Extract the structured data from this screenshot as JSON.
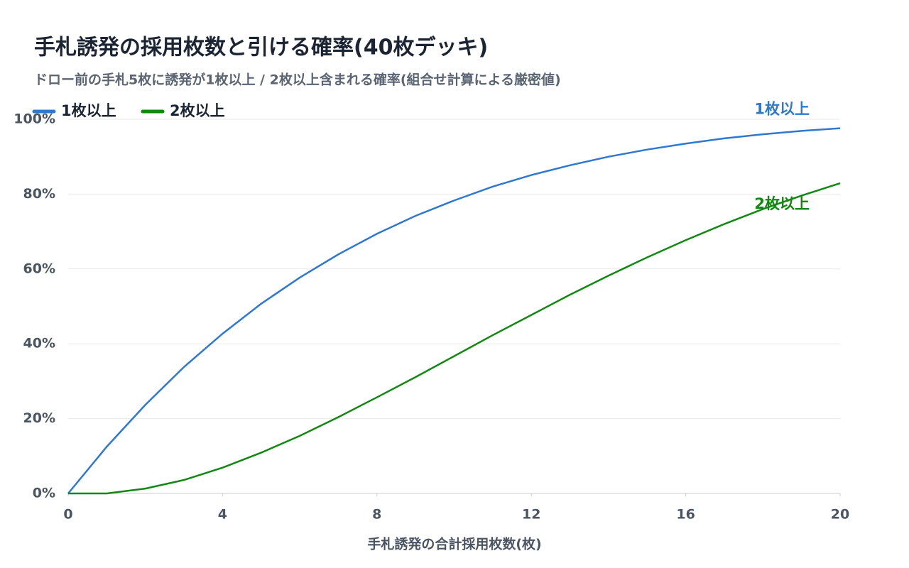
{
  "chart_data": {
    "type": "line",
    "title": "手札誘発の採用枚数と引ける確率(40枚デッキ)",
    "subtitle": "ドロー前の手札5枚に誘発が1枚以上 / 2枚以上含まれる確率(組合せ計算による厳密値)",
    "x_label": "手札誘発の合計採用枚数(枚)",
    "x": [
      0,
      1,
      2,
      3,
      4,
      5,
      6,
      7,
      8,
      9,
      10,
      11,
      12,
      13,
      14,
      15,
      16,
      17,
      18,
      19,
      20
    ],
    "series": [
      {
        "name": "1枚以上",
        "color": "#2f78d0",
        "values": [
          0,
          12.5,
          23.7,
          33.8,
          42.7,
          50.7,
          57.7,
          63.9,
          69.4,
          74.2,
          78.3,
          82.0,
          85.1,
          87.7,
          90.0,
          91.9,
          93.5,
          94.9,
          96.0,
          96.9,
          97.6
        ]
      },
      {
        "name": "2枚以上",
        "color": "#118811",
        "values": [
          0,
          0,
          1.3,
          3.6,
          6.9,
          10.9,
          15.4,
          20.4,
          25.7,
          31.1,
          36.7,
          42.3,
          47.7,
          53.1,
          58.2,
          63.1,
          67.7,
          72.0,
          76.0,
          79.6,
          82.9
        ]
      }
    ],
    "xlim": [
      0,
      20
    ],
    "xticks": [
      0,
      4,
      8,
      12,
      16,
      20
    ],
    "ylim": [
      0,
      100
    ],
    "yticks": [
      {
        "value": 0,
        "label": "0%"
      },
      {
        "value": 20,
        "label": "20%"
      },
      {
        "value": 40,
        "label": "40%"
      },
      {
        "value": 60,
        "label": "60%"
      },
      {
        "value": 80,
        "label": "80%"
      },
      {
        "value": 100,
        "label": "100%"
      }
    ],
    "grid": true,
    "legend": "top-left"
  }
}
